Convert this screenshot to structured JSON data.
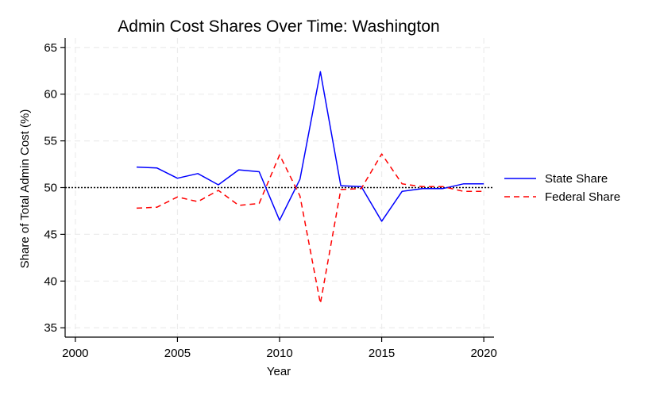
{
  "chart_data": {
    "type": "line",
    "title": "Admin Cost Shares Over Time: Washington",
    "xlabel": "Year",
    "ylabel": "Share of Total Admin Cost (%)",
    "xlim": [
      1999.5,
      2020.5
    ],
    "ylim": [
      34,
      66
    ],
    "xticks": [
      2000,
      2005,
      2010,
      2015,
      2020
    ],
    "yticks": [
      35,
      40,
      45,
      50,
      55,
      60,
      65
    ],
    "grid": true,
    "legend_position": "right",
    "reference_line": {
      "y": 50,
      "style": "dotted",
      "color": "#000000"
    },
    "x": [
      2003,
      2004,
      2005,
      2006,
      2007,
      2008,
      2009,
      2010,
      2011,
      2012,
      2013,
      2014,
      2015,
      2016,
      2017,
      2018,
      2019,
      2020
    ],
    "series": [
      {
        "name": "State Share",
        "color": "#0000ff",
        "style": "solid",
        "values": [
          52.2,
          52.1,
          51.0,
          51.5,
          50.3,
          51.9,
          51.7,
          46.5,
          50.9,
          62.4,
          50.2,
          50.1,
          46.4,
          49.6,
          49.9,
          49.9,
          50.4,
          50.4
        ]
      },
      {
        "name": "Federal Share",
        "color": "#ff0000",
        "style": "dashed",
        "values": [
          47.8,
          47.9,
          49.0,
          48.5,
          49.7,
          48.1,
          48.3,
          53.5,
          49.1,
          37.6,
          49.8,
          49.9,
          53.6,
          50.4,
          50.1,
          50.1,
          49.6,
          49.6
        ]
      }
    ]
  }
}
